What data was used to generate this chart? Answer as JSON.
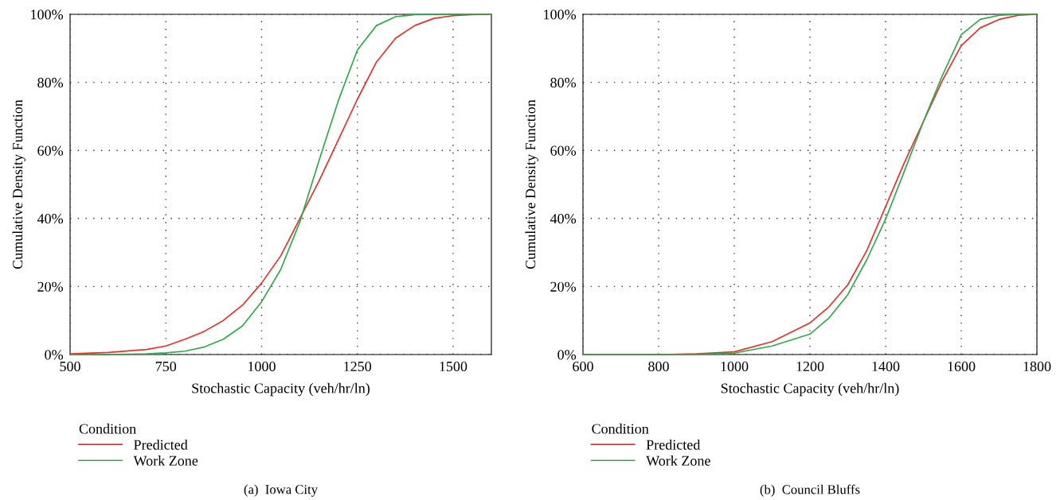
{
  "chart_data": [
    {
      "type": "line",
      "title": "(a)  Iowa City",
      "xlabel": "Stochastic Capacity (veh/hr/ln)",
      "ylabel": "Cumulative Density Function",
      "legend_title": "Condition",
      "legend": "bottom left",
      "grid": true,
      "xlim": [
        500,
        1600
      ],
      "xticks": [
        500,
        750,
        1000,
        1250,
        1500
      ],
      "ylim": [
        0,
        100
      ],
      "yticks": [
        {
          "value": 0,
          "label": "0%"
        },
        {
          "value": 20,
          "label": "20%"
        },
        {
          "value": 40,
          "label": "40%"
        },
        {
          "value": 60,
          "label": "60%"
        },
        {
          "value": 80,
          "label": "80%"
        },
        {
          "value": 100,
          "label": "100%"
        }
      ],
      "series": [
        {
          "name": "Predicted",
          "color": "#e8302a",
          "x": [
            500,
            600,
            700,
            750,
            800,
            850,
            900,
            950,
            1000,
            1050,
            1100,
            1150,
            1200,
            1250,
            1300,
            1350,
            1400,
            1450,
            1500,
            1550,
            1600
          ],
          "values": [
            0.2,
            0.6,
            1.5,
            2.5,
            4.5,
            6.8,
            10,
            14.5,
            21,
            29,
            40,
            51,
            63,
            75,
            86,
            93,
            96.7,
            98.8,
            99.6,
            99.9,
            100
          ]
        },
        {
          "name": "Work Zone",
          "color": "#2eaa4a",
          "x": [
            500,
            600,
            700,
            750,
            800,
            850,
            900,
            950,
            1000,
            1050,
            1100,
            1150,
            1200,
            1250,
            1300,
            1350,
            1400,
            1450,
            1500,
            1600
          ],
          "values": [
            0,
            0,
            0.2,
            0.5,
            1,
            2.2,
            4.5,
            8.4,
            15.5,
            25,
            39,
            57,
            74.5,
            89.5,
            96.7,
            99.3,
            99.9,
            100,
            100,
            100
          ]
        }
      ]
    },
    {
      "type": "line",
      "title": "(b)  Council Bluffs",
      "xlabel": "Stochastic Capacity (veh/hr/ln)",
      "ylabel": "Cumulative Density Function",
      "legend_title": "Condition",
      "legend": "bottom left",
      "grid": true,
      "xlim": [
        600,
        1800
      ],
      "xticks": [
        600,
        800,
        1000,
        1200,
        1400,
        1600,
        1800
      ],
      "ylim": [
        0,
        100
      ],
      "yticks": [
        {
          "value": 0,
          "label": "0%"
        },
        {
          "value": 20,
          "label": "20%"
        },
        {
          "value": 40,
          "label": "40%"
        },
        {
          "value": 60,
          "label": "60%"
        },
        {
          "value": 80,
          "label": "80%"
        },
        {
          "value": 100,
          "label": "100%"
        }
      ],
      "series": [
        {
          "name": "Predicted",
          "color": "#e8302a",
          "x": [
            600,
            800,
            900,
            1000,
            1100,
            1200,
            1250,
            1300,
            1350,
            1400,
            1450,
            1500,
            1550,
            1600,
            1650,
            1700,
            1750,
            1800
          ],
          "values": [
            0,
            0,
            0.2,
            0.8,
            3.8,
            9.3,
            14,
            20.5,
            30.5,
            43.5,
            56.5,
            68.5,
            80.5,
            90.8,
            96,
            98.5,
            99.7,
            100
          ]
        },
        {
          "name": "Work Zone",
          "color": "#2eaa4a",
          "x": [
            600,
            800,
            900,
            1000,
            1100,
            1200,
            1250,
            1300,
            1350,
            1400,
            1450,
            1500,
            1550,
            1600,
            1650,
            1700,
            1750,
            1800
          ],
          "values": [
            0,
            0,
            0.1,
            0.4,
            2.5,
            6,
            10.7,
            17.6,
            27.8,
            39.8,
            54,
            68.5,
            82,
            94,
            98.5,
            99.7,
            100,
            100
          ]
        }
      ]
    }
  ]
}
